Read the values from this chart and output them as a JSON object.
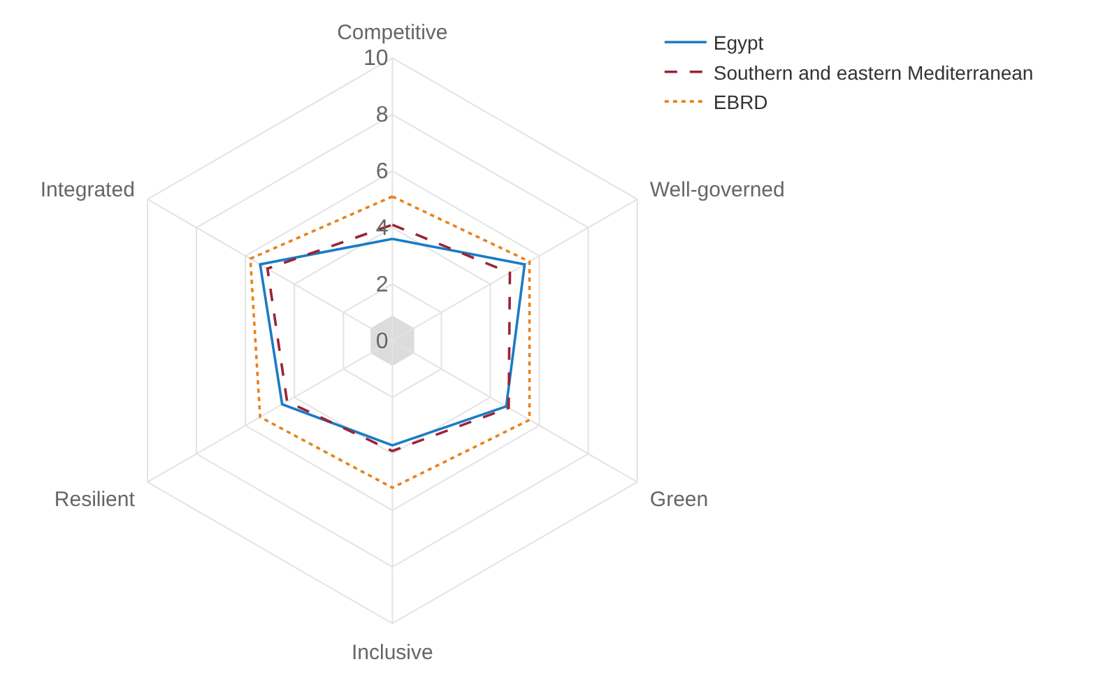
{
  "chart_data": {
    "type": "radar",
    "categories": [
      "Competitive",
      "Well-governed",
      "Green",
      "Inclusive",
      "Resilient",
      "Integrated"
    ],
    "ylim": [
      0,
      10
    ],
    "yticks": [
      0,
      2,
      4,
      6,
      8,
      10
    ],
    "grid": true,
    "legend": "top right",
    "marker": "none",
    "series": [
      {
        "name": "Egypt",
        "color": "#1a7bc4",
        "line_style": "solid",
        "values": [
          3.6,
          5.4,
          4.65,
          3.7,
          4.5,
          5.4
        ]
      },
      {
        "name": "Southern and eastern Mediterranean",
        "color": "#9b2335",
        "line_style": "dashed",
        "values": [
          4.1,
          4.8,
          4.75,
          3.9,
          4.3,
          5.1
        ]
      },
      {
        "name": "EBRD",
        "color": "#e8821e",
        "line_style": "dotted",
        "values": [
          5.1,
          5.6,
          5.6,
          5.2,
          5.4,
          5.8
        ]
      }
    ]
  }
}
